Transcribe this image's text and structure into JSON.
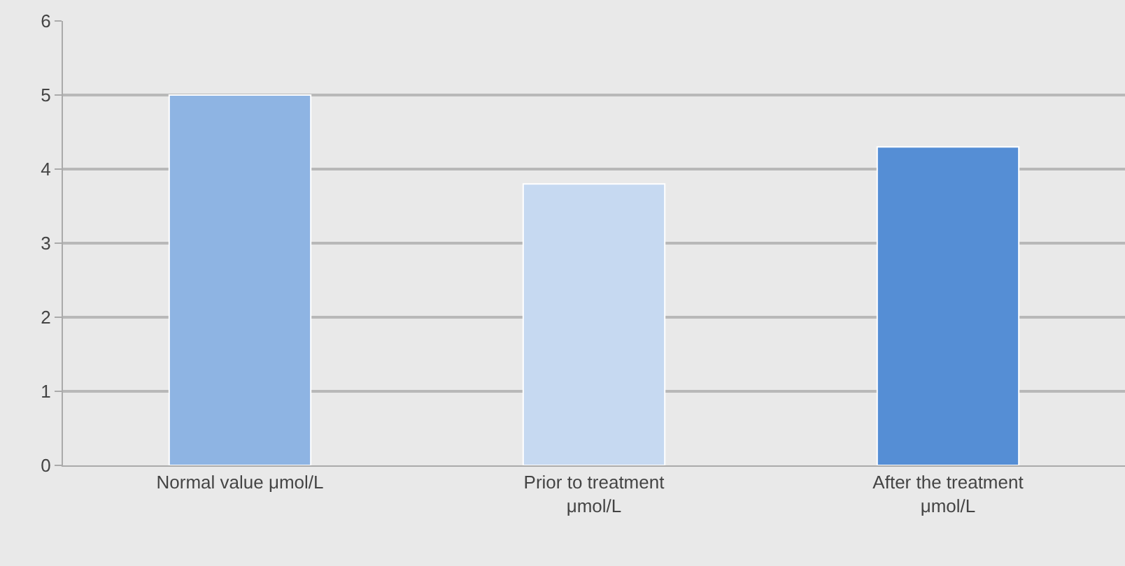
{
  "chart_data": {
    "type": "bar",
    "categories": [
      "Normal value μmol/L",
      "Prior to treatment μmol/L",
      "After the treatment μmol/L"
    ],
    "values": [
      5,
      3.8,
      4.3
    ],
    "colors": [
      "#8eb4e3",
      "#c6d9f1",
      "#558ed5"
    ],
    "ylim": [
      0,
      6
    ],
    "yticks": [
      0,
      1,
      2,
      3,
      4,
      5,
      6
    ],
    "grid": "y"
  }
}
